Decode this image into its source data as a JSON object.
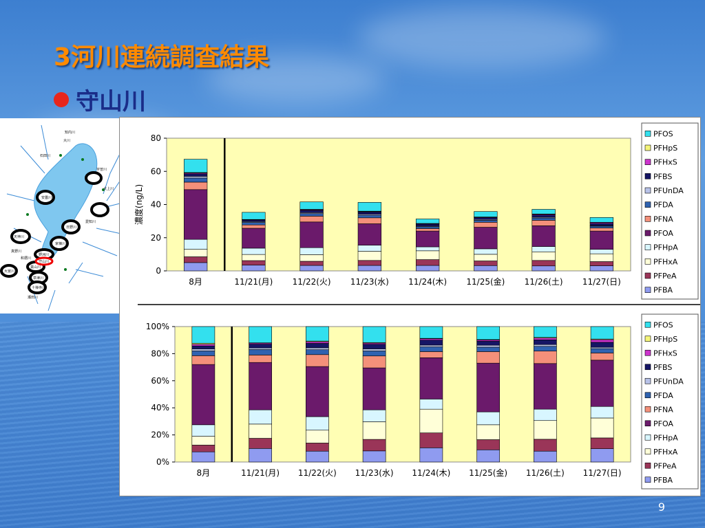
{
  "title": "3河川連続調査結果",
  "bullet": "守山川",
  "page_number": "9",
  "map": {
    "site_labels": [
      "天神川",
      "石田川",
      "知内川",
      "安曇川",
      "大川",
      "犬上川",
      "宇曽川",
      "愛知川",
      "日野川",
      "家棟川",
      "野洲川",
      "守山川",
      "葉山川",
      "瀬田川",
      "十禅寺川",
      "草津川",
      "真野川",
      "和邇川",
      "大宮川"
    ]
  },
  "colors": {
    "PFOS": "#33e0ee",
    "PFHpS": "#f5f57a",
    "PFHxS": "#cc33cc",
    "PFBS": "#151565",
    "PFUnDA": "#b8c2e8",
    "PFDA": "#2f62b0",
    "PFNA": "#f4907a",
    "PFOA": "#6b1a6b",
    "PFHpA": "#d8f6ff",
    "PFHxA": "#ffffd8",
    "PFPeA": "#9a3558",
    "PFBA": "#8f9bf0",
    "plot_bg": "#fffeb4"
  },
  "chart_data": [
    {
      "type": "bar",
      "stacked": true,
      "ylabel": "濃度(ng/L)",
      "ylim": [
        0,
        80
      ],
      "yticks": [
        "0",
        "20",
        "40",
        "60",
        "80"
      ],
      "categories": [
        "8月",
        "11/21(月)",
        "11/22(火)",
        "11/23(水)",
        "11/24(木)",
        "11/25(金)",
        "11/26(土)",
        "11/27(日)"
      ],
      "legend_position": "right",
      "series": [
        {
          "name": "PFBA",
          "values": [
            5,
            3.5,
            3.3,
            3.3,
            3.3,
            3.2,
            3,
            3.1
          ]
        },
        {
          "name": "PFPeA",
          "values": [
            3.5,
            2.7,
            2.5,
            3,
            3.5,
            2.8,
            3.3,
            2.5
          ]
        },
        {
          "name": "PFHxA",
          "values": [
            4.5,
            3.7,
            4,
            5.5,
            5.3,
            4,
            5.2,
            4.7
          ]
        },
        {
          "name": "PFHpA",
          "values": [
            6,
            3.8,
            4.2,
            3.7,
            2.4,
            3.3,
            3.2,
            2.7
          ]
        },
        {
          "name": "PFOA",
          "values": [
            30,
            12,
            15.5,
            12.9,
            9.5,
            13,
            12.5,
            11
          ]
        },
        {
          "name": "PFNA",
          "values": [
            4.5,
            2,
            3.5,
            3.6,
            1.5,
            3,
            3.3,
            1.9
          ]
        },
        {
          "name": "PFDA",
          "values": [
            2.5,
            1.5,
            1.5,
            1.5,
            1.1,
            1.2,
            1.4,
            1.1
          ]
        },
        {
          "name": "PFUnDA",
          "values": [
            1,
            0.5,
            0.6,
            0.6,
            0.4,
            0.5,
            0.5,
            0.3
          ]
        },
        {
          "name": "PFBS",
          "values": [
            1.5,
            1,
            1.4,
            1.4,
            1.2,
            1.1,
            1.3,
            1.2
          ]
        },
        {
          "name": "PFHxS",
          "values": [
            0.5,
            0.2,
            0.4,
            0.3,
            0.3,
            0.3,
            0.4,
            0.6
          ]
        },
        {
          "name": "PFHpS",
          "values": [
            0.3,
            0.1,
            0.2,
            0.2,
            0.1,
            0.1,
            0.2,
            0.2
          ]
        },
        {
          "name": "PFOS",
          "values": [
            8,
            4.3,
            4.5,
            5.3,
            2.7,
            3.3,
            2.8,
            2.9
          ]
        }
      ]
    },
    {
      "type": "bar",
      "stacked": true,
      "normalized": true,
      "ylim": [
        0,
        100
      ],
      "yticks": [
        "0%",
        "20%",
        "40%",
        "60%",
        "80%",
        "100%"
      ],
      "categories": [
        "8月",
        "11/21(月)",
        "11/22(火)",
        "11/23(水)",
        "11/24(木)",
        "11/25(金)",
        "11/26(土)",
        "11/27(日)"
      ],
      "legend_position": "right",
      "series": [
        {
          "name": "PFBA",
          "values": [
            7.5,
            10,
            8,
            8.2,
            10.5,
            9,
            8,
            9.8
          ]
        },
        {
          "name": "PFPeA",
          "values": [
            5,
            7.5,
            6,
            8.5,
            11,
            7.5,
            8.8,
            8
          ]
        },
        {
          "name": "PFHxA",
          "values": [
            6.5,
            10.5,
            9.5,
            13,
            17.5,
            11,
            13.8,
            14.7
          ]
        },
        {
          "name": "PFHpA",
          "values": [
            8.5,
            10.5,
            10,
            8.8,
            7.5,
            9.5,
            8.4,
            8.5
          ]
        },
        {
          "name": "PFOA",
          "values": [
            44.5,
            35,
            37,
            31,
            30.5,
            36,
            33.7,
            34.2
          ]
        },
        {
          "name": "PFNA",
          "values": [
            6.5,
            5.5,
            8.8,
            8.8,
            4.5,
            8.5,
            9.2,
            5.3
          ]
        },
        {
          "name": "PFDA",
          "values": [
            3.5,
            4,
            3.6,
            3.7,
            3.5,
            3.3,
            3.5,
            3.2
          ]
        },
        {
          "name": "PFUnDA",
          "values": [
            1.5,
            1.2,
            1.4,
            1.5,
            1.3,
            1.4,
            1.3,
            1
          ]
        },
        {
          "name": "PFBS",
          "values": [
            2.2,
            2.8,
            3.3,
            3.4,
            3.7,
            3,
            3.5,
            3.7
          ]
        },
        {
          "name": "PFHxS",
          "values": [
            1.2,
            0.8,
            1.2,
            0.9,
            1,
            0.9,
            1.3,
            1.9
          ]
        },
        {
          "name": "PFHpS",
          "values": [
            0.8,
            0.2,
            0.5,
            0.4,
            0.3,
            0.3,
            0.5,
            0.5
          ]
        },
        {
          "name": "PFOS",
          "values": [
            12.3,
            12,
            10.7,
            11.8,
            8.7,
            9.6,
            8,
            9.2
          ]
        }
      ]
    }
  ]
}
